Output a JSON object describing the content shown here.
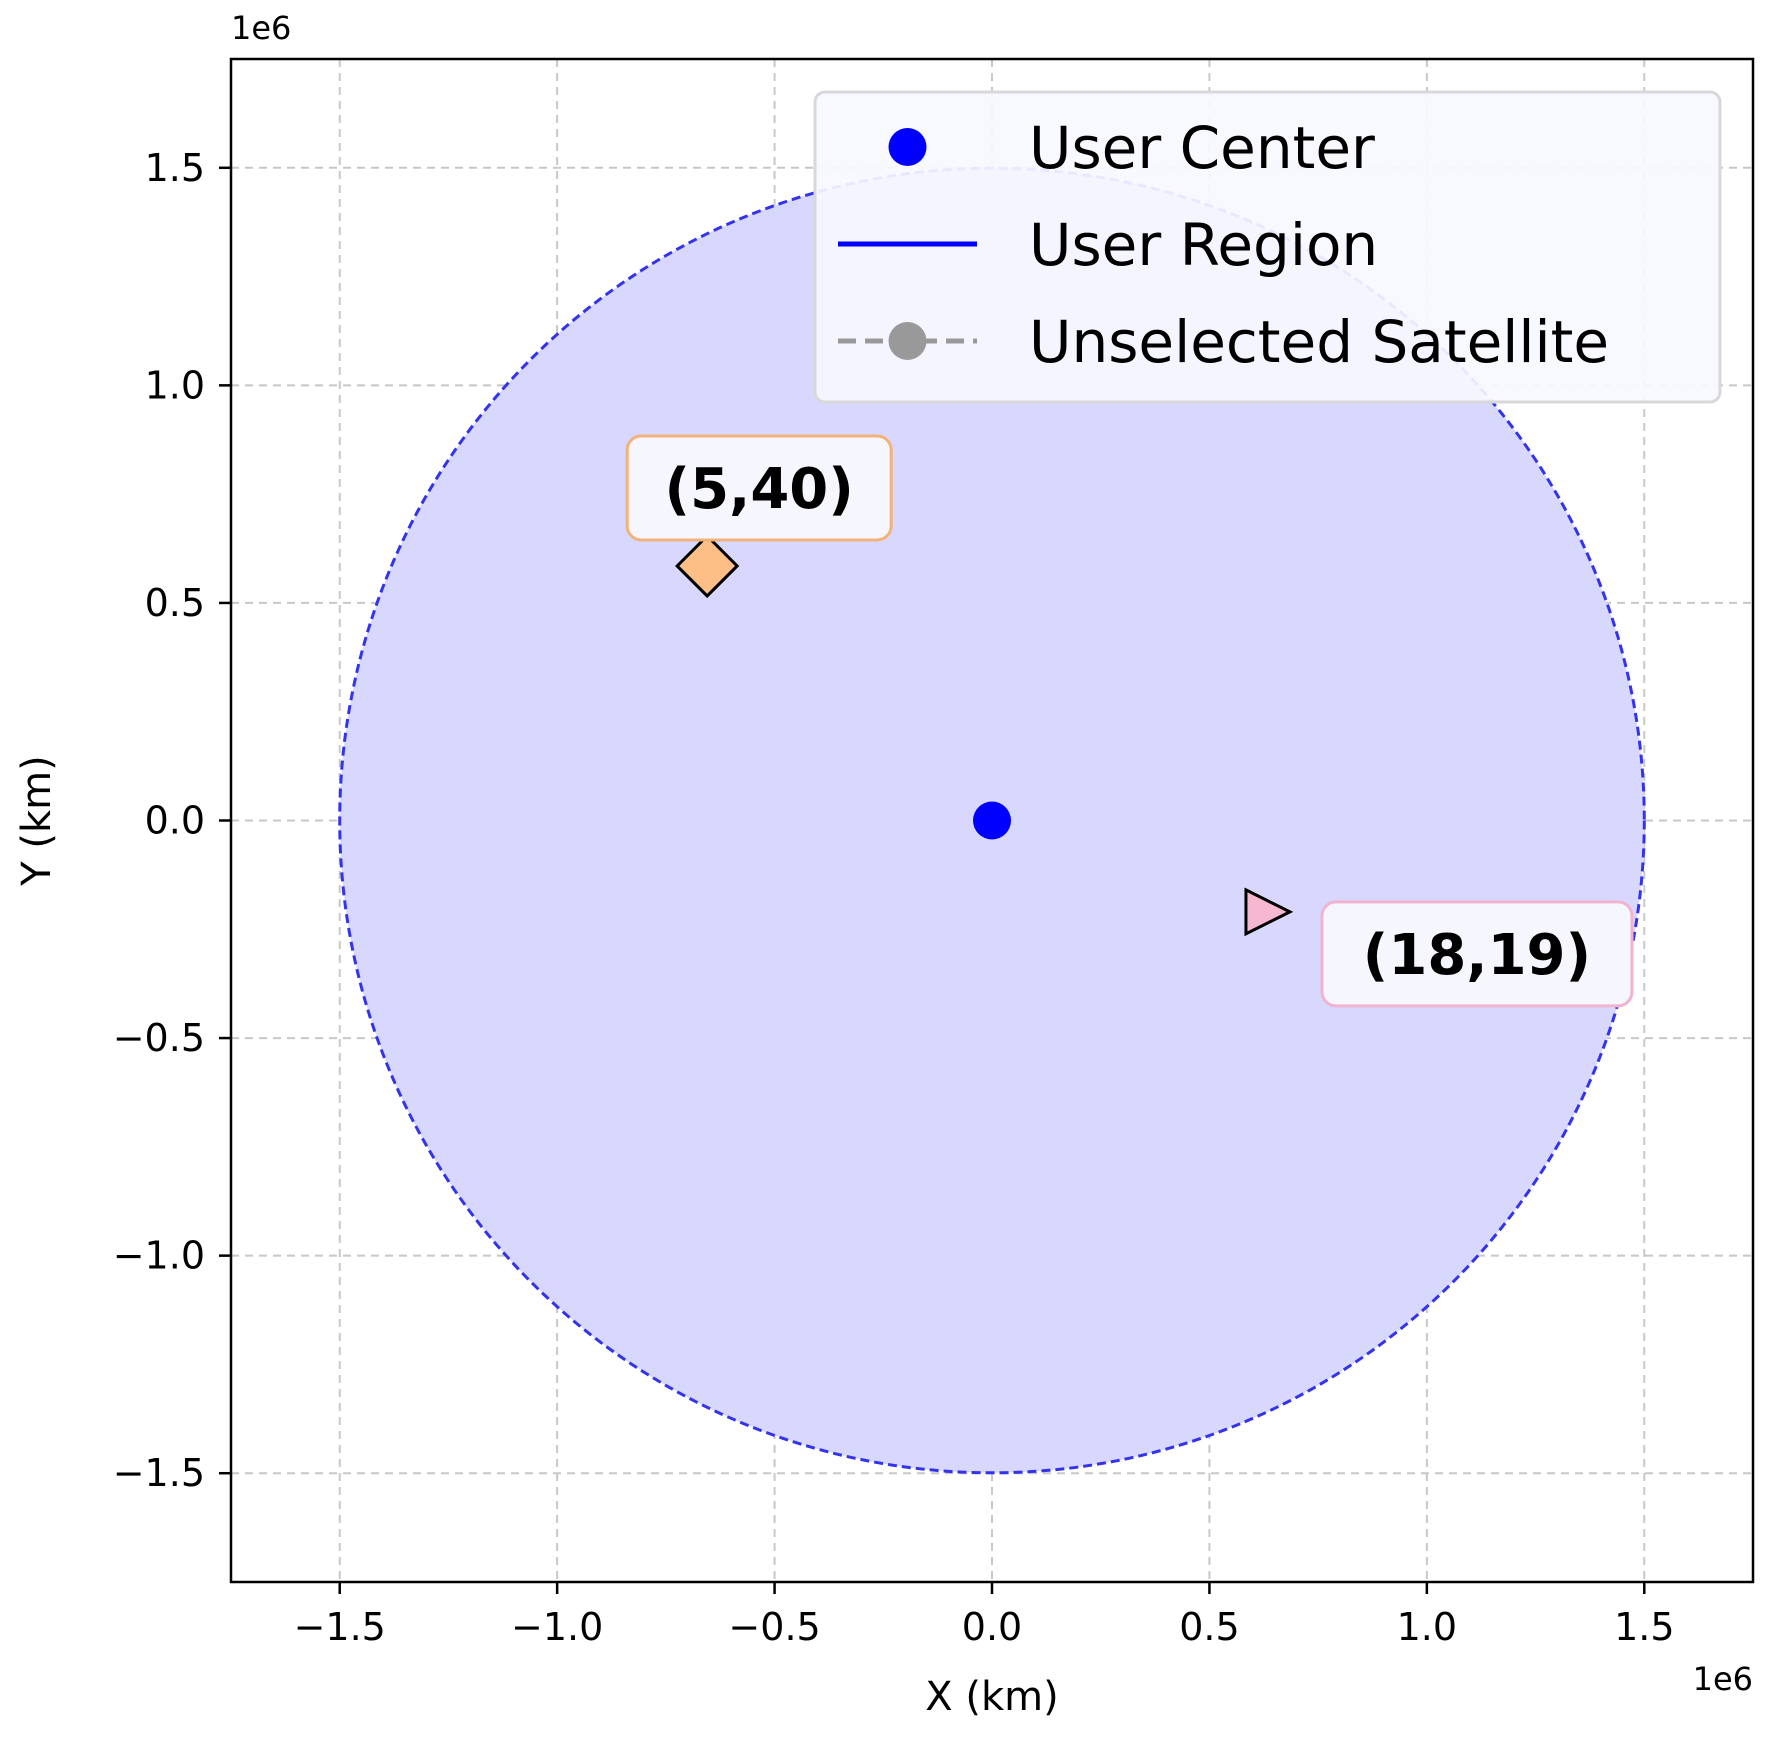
{
  "chart_data": {
    "type": "scatter",
    "x_offset_label": "1e6",
    "y_offset_label": "1e6",
    "xlabel": "X (km)",
    "ylabel": "Y (km)",
    "xlim": [
      -1.75,
      1.75
    ],
    "ylim": [
      -1.75,
      1.75
    ],
    "xticks": [
      -1.5,
      -1.0,
      -0.5,
      0.0,
      0.5,
      1.0,
      1.5
    ],
    "yticks": [
      -1.5,
      -1.0,
      -0.5,
      0.0,
      0.5,
      1.0,
      1.5
    ],
    "xtick_labels": [
      "−1.5",
      "−1.0",
      "−0.5",
      "0.0",
      "0.5",
      "1.0",
      "1.5"
    ],
    "ytick_labels": [
      "−1.5",
      "−1.0",
      "−0.5",
      "0.0",
      "0.5",
      "1.0",
      "1.5"
    ],
    "grid": true,
    "user_center": {
      "x": 0.0,
      "y": 0.0,
      "color": "#0000ff"
    },
    "user_region": {
      "center_x": 0.0,
      "center_y": 0.0,
      "radius": 1.5,
      "fill": "#d8d8ff",
      "stroke": "#3333ee"
    },
    "satellites": [
      {
        "label": "(5,40)",
        "x": -0.655,
        "y": 0.585,
        "marker": "diamond",
        "color": "#fdbf86",
        "edge": "#f3b27a"
      },
      {
        "label": "(18,19)",
        "x": 0.63,
        "y": -0.21,
        "marker": "triangle-right",
        "color": "#f5b8d0",
        "edge": "#f2b3cf"
      }
    ],
    "legend": {
      "position": "top-right",
      "entries": [
        {
          "label": "User Center",
          "kind": "dot",
          "color": "#0000ff"
        },
        {
          "label": "User Region",
          "kind": "line",
          "color": "#0000ff"
        },
        {
          "label": "Unselected Satellite",
          "kind": "dashed-dot",
          "color": "#999999"
        }
      ]
    }
  }
}
